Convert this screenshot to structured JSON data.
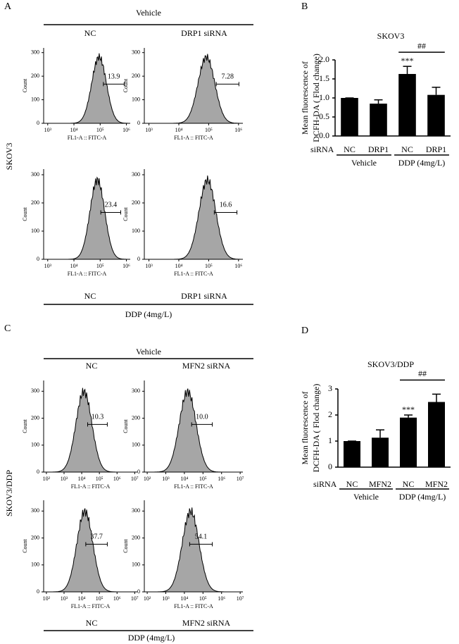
{
  "figure": {
    "panel_a": {
      "letter": "A",
      "top_group": "Vehicle",
      "top_left": "NC",
      "top_right": "DRP1 siRNA",
      "bottom_left": "NC",
      "bottom_right": "DRP1 siRNA",
      "bottom_group": "DDP (4mg/L)",
      "row_label": "SKOV3"
    },
    "panel_c": {
      "letter": "C",
      "top_group": "Vehicle",
      "top_left": "NC",
      "top_right": "MFN2 siRNA",
      "bottom_left": "NC",
      "bottom_right": "MFN2 siRNA",
      "bottom_group": "DDP (4mg/L)",
      "row_label": "SKOV3/DDP"
    },
    "panel_b": {
      "letter": "B"
    },
    "panel_d": {
      "letter": "D"
    }
  },
  "chart_data": [
    {
      "type": "flow",
      "x_label": "FL1-A :: FITC-A",
      "y_label": "Count",
      "log_x": true,
      "gate_label": "13.9",
      "xlim": [
        700,
        1400000
      ],
      "xticks": [
        {
          "value": 1000,
          "label": "10³"
        },
        {
          "value": 10000,
          "label": "10⁴"
        },
        {
          "value": 100000,
          "label": "10⁵"
        },
        {
          "value": 1000000,
          "label": "10⁶"
        }
      ],
      "ylim": [
        0,
        320
      ],
      "yticks": [
        0,
        100,
        200,
        300
      ]
    },
    {
      "type": "flow",
      "x_label": "FL1-A :: FITC-A",
      "y_label": "Count",
      "log_x": true,
      "gate_label": "7.28",
      "xlim": [
        700,
        1400000
      ],
      "xticks": [
        {
          "value": 1000,
          "label": "10³"
        },
        {
          "value": 10000,
          "label": "10⁴"
        },
        {
          "value": 100000,
          "label": "10⁵"
        },
        {
          "value": 1000000,
          "label": "10⁶"
        }
      ],
      "ylim": [
        0,
        320
      ],
      "yticks": [
        0,
        100,
        200,
        300
      ]
    },
    {
      "type": "flow",
      "x_label": "FL1-A :: FITC-A",
      "y_label": "Count",
      "log_x": true,
      "gate_label": "23.4",
      "xlim": [
        700,
        1400000
      ],
      "xticks": [
        {
          "value": 1000,
          "label": "10³"
        },
        {
          "value": 10000,
          "label": "10⁴"
        },
        {
          "value": 100000,
          "label": "10⁵"
        },
        {
          "value": 1000000,
          "label": "10⁶"
        }
      ],
      "ylim": [
        0,
        320
      ],
      "yticks": [
        0,
        100,
        200,
        300
      ]
    },
    {
      "type": "flow",
      "x_label": "FL1-A :: FITC-A",
      "y_label": "Count",
      "log_x": true,
      "gate_label": "16.6",
      "xlim": [
        700,
        1400000
      ],
      "xticks": [
        {
          "value": 1000,
          "label": "10³"
        },
        {
          "value": 10000,
          "label": "10⁴"
        },
        {
          "value": 100000,
          "label": "10⁵"
        },
        {
          "value": 1000000,
          "label": "10⁶"
        }
      ],
      "ylim": [
        0,
        320
      ],
      "yticks": [
        0,
        100,
        200,
        300
      ]
    },
    {
      "type": "flow",
      "x_label": "FL1-A :: FITC-A",
      "y_label": "Count",
      "log_x": true,
      "gate_label": "10.3",
      "xlim": [
        70,
        14000000
      ],
      "xticks": [
        {
          "value": 100,
          "label": "10²"
        },
        {
          "value": 1000,
          "label": "10³"
        },
        {
          "value": 10000,
          "label": "10⁴"
        },
        {
          "value": 100000,
          "label": "10⁵"
        },
        {
          "value": 1000000,
          "label": "10⁶"
        },
        {
          "value": 10000000,
          "label": "10⁷"
        }
      ],
      "ylim": [
        0,
        340
      ],
      "yticks": [
        0,
        100,
        200,
        300
      ]
    },
    {
      "type": "flow",
      "x_label": "FL1-A :: FITC-A",
      "y_label": "Count",
      "log_x": true,
      "gate_label": "10.0",
      "xlim": [
        70,
        14000000
      ],
      "xticks": [
        {
          "value": 100,
          "label": "10²"
        },
        {
          "value": 1000,
          "label": "10³"
        },
        {
          "value": 10000,
          "label": "10⁴"
        },
        {
          "value": 100000,
          "label": "10⁵"
        },
        {
          "value": 1000000,
          "label": "10⁶"
        },
        {
          "value": 10000000,
          "label": "10⁷"
        }
      ],
      "ylim": [
        0,
        340
      ],
      "yticks": [
        0,
        100,
        200,
        300
      ]
    },
    {
      "type": "flow",
      "x_label": "FL1-A :: FITC-A",
      "y_label": "Count",
      "log_x": true,
      "gate_label": "37.7",
      "xlim": [
        70,
        14000000
      ],
      "xticks": [
        {
          "value": 100,
          "label": "10²"
        },
        {
          "value": 1000,
          "label": "10³"
        },
        {
          "value": 10000,
          "label": "10⁴"
        },
        {
          "value": 100000,
          "label": "10⁵"
        },
        {
          "value": 1000000,
          "label": "10⁶"
        },
        {
          "value": 10000000,
          "label": "10⁷"
        }
      ],
      "ylim": [
        0,
        340
      ],
      "yticks": [
        0,
        100,
        200,
        300
      ]
    },
    {
      "type": "flow",
      "x_label": "FL1-A :: FITC-A",
      "y_label": "Count",
      "log_x": true,
      "gate_label": "54.1",
      "xlim": [
        70,
        14000000
      ],
      "xticks": [
        {
          "value": 100,
          "label": "10²"
        },
        {
          "value": 1000,
          "label": "10³"
        },
        {
          "value": 10000,
          "label": "10⁴"
        },
        {
          "value": 100000,
          "label": "10⁵"
        },
        {
          "value": 1000000,
          "label": "10⁶"
        },
        {
          "value": 10000000,
          "label": "10⁷"
        }
      ],
      "ylim": [
        0,
        340
      ],
      "yticks": [
        0,
        100,
        200,
        300
      ]
    },
    {
      "type": "bar",
      "title": "SKOV3",
      "y_label": [
        "Mean  fluorescence of",
        "DCFH-DA ( Flod change)"
      ],
      "row_label": "siRNA",
      "categories": [
        "NC",
        "DRP1",
        "NC",
        "DRP1"
      ],
      "group_labels": [
        "Vehicle",
        "DDP (4mg/L)"
      ],
      "values": [
        1.0,
        0.85,
        1.63,
        1.08
      ],
      "errors": [
        0,
        0.1,
        0.2,
        0.2
      ],
      "color": "#000000",
      "annotations": [
        "***",
        "##"
      ],
      "ylim": [
        0,
        2.0
      ],
      "yticks": [
        {
          "value": 0,
          "label": "0.0"
        },
        0.5,
        {
          "value": 1,
          "label": "1.0"
        },
        1.5,
        {
          "value": 2,
          "label": "2.0"
        }
      ]
    },
    {
      "type": "bar",
      "title": "SKOV3/DDP",
      "y_label": [
        "Mean  fluorescence of",
        "DCFH-DA ( Flod change)"
      ],
      "row_label": "siRNA",
      "categories": [
        "NC",
        "MFN2",
        "NC",
        "MFN2"
      ],
      "group_labels": [
        "Vehicle",
        "DDP (4mg/L)"
      ],
      "values": [
        1.0,
        1.13,
        1.9,
        2.5
      ],
      "errors": [
        0,
        0.3,
        0.1,
        0.3
      ],
      "color": "#000000",
      "annotations": [
        "***",
        "##"
      ],
      "ylim": [
        0,
        3
      ],
      "yticks": [
        0,
        1,
        2,
        3
      ]
    }
  ]
}
